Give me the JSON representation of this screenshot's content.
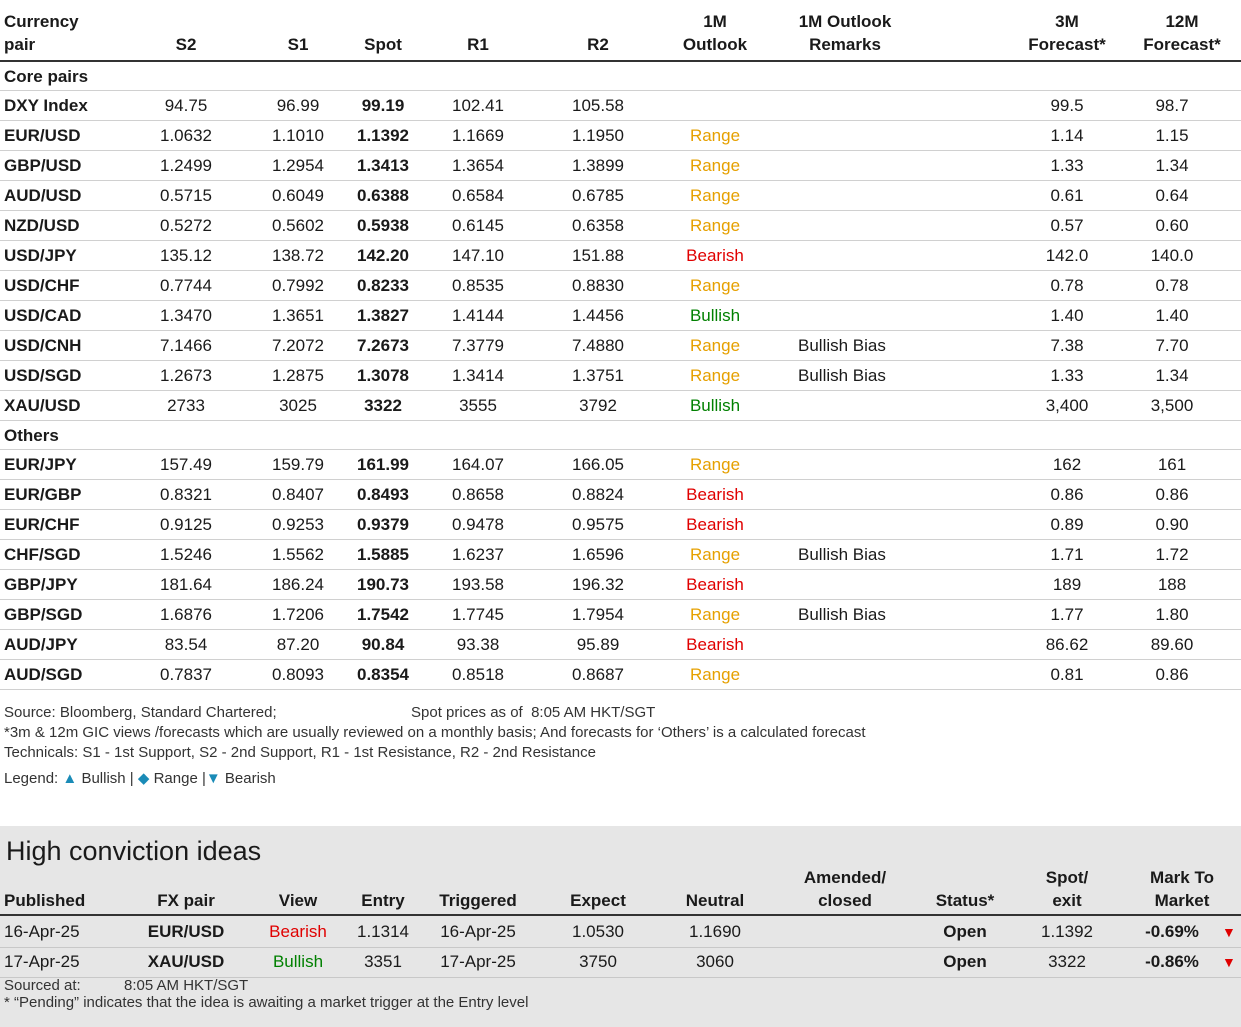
{
  "table": {
    "headers": {
      "pair": [
        "Currency",
        "pair"
      ],
      "s2": "S2",
      "s1": "S1",
      "spot": "Spot",
      "r1": "R1",
      "r2": "R2",
      "outlook": [
        "1M",
        "Outlook"
      ],
      "remarks": [
        "1M Outlook",
        "Remarks"
      ],
      "f3m": [
        "3M",
        "Forecast*"
      ],
      "f12m": [
        "12M",
        "Forecast*"
      ]
    },
    "sections": [
      {
        "title": "Core pairs",
        "rows": [
          {
            "pair": "DXY Index",
            "s2": "94.75",
            "s1": "96.99",
            "spot": "99.19",
            "r1": "102.41",
            "r2": "105.58",
            "outlook": "",
            "remarks": "",
            "f3m": "99.5",
            "f12m": "98.7"
          },
          {
            "pair": "EUR/USD",
            "s2": "1.0632",
            "s1": "1.1010",
            "spot": "1.1392",
            "r1": "1.1669",
            "r2": "1.1950",
            "outlook": "Range",
            "remarks": "",
            "f3m": "1.14",
            "f12m": "1.15"
          },
          {
            "pair": "GBP/USD",
            "s2": "1.2499",
            "s1": "1.2954",
            "spot": "1.3413",
            "r1": "1.3654",
            "r2": "1.3899",
            "outlook": "Range",
            "remarks": "",
            "f3m": "1.33",
            "f12m": "1.34"
          },
          {
            "pair": "AUD/USD",
            "s2": "0.5715",
            "s1": "0.6049",
            "spot": "0.6388",
            "r1": "0.6584",
            "r2": "0.6785",
            "outlook": "Range",
            "remarks": "",
            "f3m": "0.61",
            "f12m": "0.64"
          },
          {
            "pair": "NZD/USD",
            "s2": "0.5272",
            "s1": "0.5602",
            "spot": "0.5938",
            "r1": "0.6145",
            "r2": "0.6358",
            "outlook": "Range",
            "remarks": "",
            "f3m": "0.57",
            "f12m": "0.60"
          },
          {
            "pair": "USD/JPY",
            "s2": "135.12",
            "s1": "138.72",
            "spot": "142.20",
            "r1": "147.10",
            "r2": "151.88",
            "outlook": "Bearish",
            "remarks": "",
            "f3m": "142.0",
            "f12m": "140.0"
          },
          {
            "pair": "USD/CHF",
            "s2": "0.7744",
            "s1": "0.7992",
            "spot": "0.8233",
            "r1": "0.8535",
            "r2": "0.8830",
            "outlook": "Range",
            "remarks": "",
            "f3m": "0.78",
            "f12m": "0.78"
          },
          {
            "pair": "USD/CAD",
            "s2": "1.3470",
            "s1": "1.3651",
            "spot": "1.3827",
            "r1": "1.4144",
            "r2": "1.4456",
            "outlook": "Bullish",
            "remarks": "",
            "f3m": "1.40",
            "f12m": "1.40"
          },
          {
            "pair": "USD/CNH",
            "s2": "7.1466",
            "s1": "7.2072",
            "spot": "7.2673",
            "r1": "7.3779",
            "r2": "7.4880",
            "outlook": "Range",
            "remarks": "Bullish Bias",
            "f3m": "7.38",
            "f12m": "7.70"
          },
          {
            "pair": "USD/SGD",
            "s2": "1.2673",
            "s1": "1.2875",
            "spot": "1.3078",
            "r1": "1.3414",
            "r2": "1.3751",
            "outlook": "Range",
            "remarks": "Bullish Bias",
            "f3m": "1.33",
            "f12m": "1.34"
          },
          {
            "pair": "XAU/USD",
            "s2": "2733",
            "s1": "3025",
            "spot": "3322",
            "r1": "3555",
            "r2": "3792",
            "outlook": "Bullish",
            "remarks": "",
            "f3m": "3,400",
            "f12m": "3,500"
          }
        ]
      },
      {
        "title": "Others",
        "rows": [
          {
            "pair": "EUR/JPY",
            "s2": "157.49",
            "s1": "159.79",
            "spot": "161.99",
            "r1": "164.07",
            "r2": "166.05",
            "outlook": "Range",
            "remarks": "",
            "f3m": "162",
            "f12m": "161"
          },
          {
            "pair": "EUR/GBP",
            "s2": "0.8321",
            "s1": "0.8407",
            "spot": "0.8493",
            "r1": "0.8658",
            "r2": "0.8824",
            "outlook": "Bearish",
            "remarks": "",
            "f3m": "0.86",
            "f12m": "0.86"
          },
          {
            "pair": "EUR/CHF",
            "s2": "0.9125",
            "s1": "0.9253",
            "spot": "0.9379",
            "r1": "0.9478",
            "r2": "0.9575",
            "outlook": "Bearish",
            "remarks": "",
            "f3m": "0.89",
            "f12m": "0.90"
          },
          {
            "pair": "CHF/SGD",
            "s2": "1.5246",
            "s1": "1.5562",
            "spot": "1.5885",
            "r1": "1.6237",
            "r2": "1.6596",
            "outlook": "Range",
            "remarks": "Bullish Bias",
            "f3m": "1.71",
            "f12m": "1.72"
          },
          {
            "pair": "GBP/JPY",
            "s2": "181.64",
            "s1": "186.24",
            "spot": "190.73",
            "r1": "193.58",
            "r2": "196.32",
            "outlook": "Bearish",
            "remarks": "",
            "f3m": "189",
            "f12m": "188"
          },
          {
            "pair": "GBP/SGD",
            "s2": "1.6876",
            "s1": "1.7206",
            "spot": "1.7542",
            "r1": "1.7745",
            "r2": "1.7954",
            "outlook": "Range",
            "remarks": "Bullish Bias",
            "f3m": "1.77",
            "f12m": "1.80"
          },
          {
            "pair": "AUD/JPY",
            "s2": "83.54",
            "s1": "87.20",
            "spot": "90.84",
            "r1": "93.38",
            "r2": "95.89",
            "outlook": "Bearish",
            "remarks": "",
            "f3m": "86.62",
            "f12m": "89.60"
          },
          {
            "pair": "AUD/SGD",
            "s2": "0.7837",
            "s1": "0.8093",
            "spot": "0.8354",
            "r1": "0.8518",
            "r2": "0.8687",
            "outlook": "Range",
            "remarks": "",
            "f3m": "0.81",
            "f12m": "0.86"
          }
        ]
      }
    ]
  },
  "notes": {
    "source": "Source: Bloomberg, Standard Chartered;",
    "spot_prefix": "Spot prices as of",
    "spot_time": "8:05 AM HKT/SGT",
    "forecast_note": "*3m & 12m GIC views /forecasts which are usually reviewed on a monthly basis; And forecasts for ‘Others’ is a calculated forecast",
    "technicals": "Technicals: S1 - 1st Support, S2 - 2nd Support, R1 - 1st Resistance, R2 - 2nd Resistance",
    "legend_label": "Legend:",
    "legend_bullish": "Bullish",
    "legend_range": "Range",
    "legend_bearish": "Bearish",
    "legend_sep": "|"
  },
  "high_conviction": {
    "title": "High conviction ideas",
    "headers": {
      "published": "Published",
      "pair": "FX pair",
      "view": "View",
      "entry": "Entry",
      "triggered": "Triggered",
      "expect": "Expect",
      "neutral": "Neutral",
      "amended": [
        "Amended/",
        "closed"
      ],
      "status": "Status*",
      "spot": [
        "Spot/",
        "exit"
      ],
      "mtm": [
        "Mark To",
        "Market"
      ]
    },
    "rows": [
      {
        "published": "16-Apr-25",
        "pair": "EUR/USD",
        "view": "Bearish",
        "entry": "1.1314",
        "triggered": "16-Apr-25",
        "expect": "1.0530",
        "neutral": "1.1690",
        "amended": "",
        "status": "Open",
        "spot": "1.1392",
        "mtm": "-0.69%"
      },
      {
        "published": "17-Apr-25",
        "pair": "XAU/USD",
        "view": "Bullish",
        "entry": "3351",
        "triggered": "17-Apr-25",
        "expect": "3750",
        "neutral": "3060",
        "amended": "",
        "status": "Open",
        "spot": "3322",
        "mtm": "-0.86%"
      }
    ],
    "sourced_label": "Sourced at:",
    "sourced_time": "8:05 AM HKT/SGT",
    "pending_note": "* “Pending” indicates that the idea is awaiting a market trigger at the Entry level"
  }
}
